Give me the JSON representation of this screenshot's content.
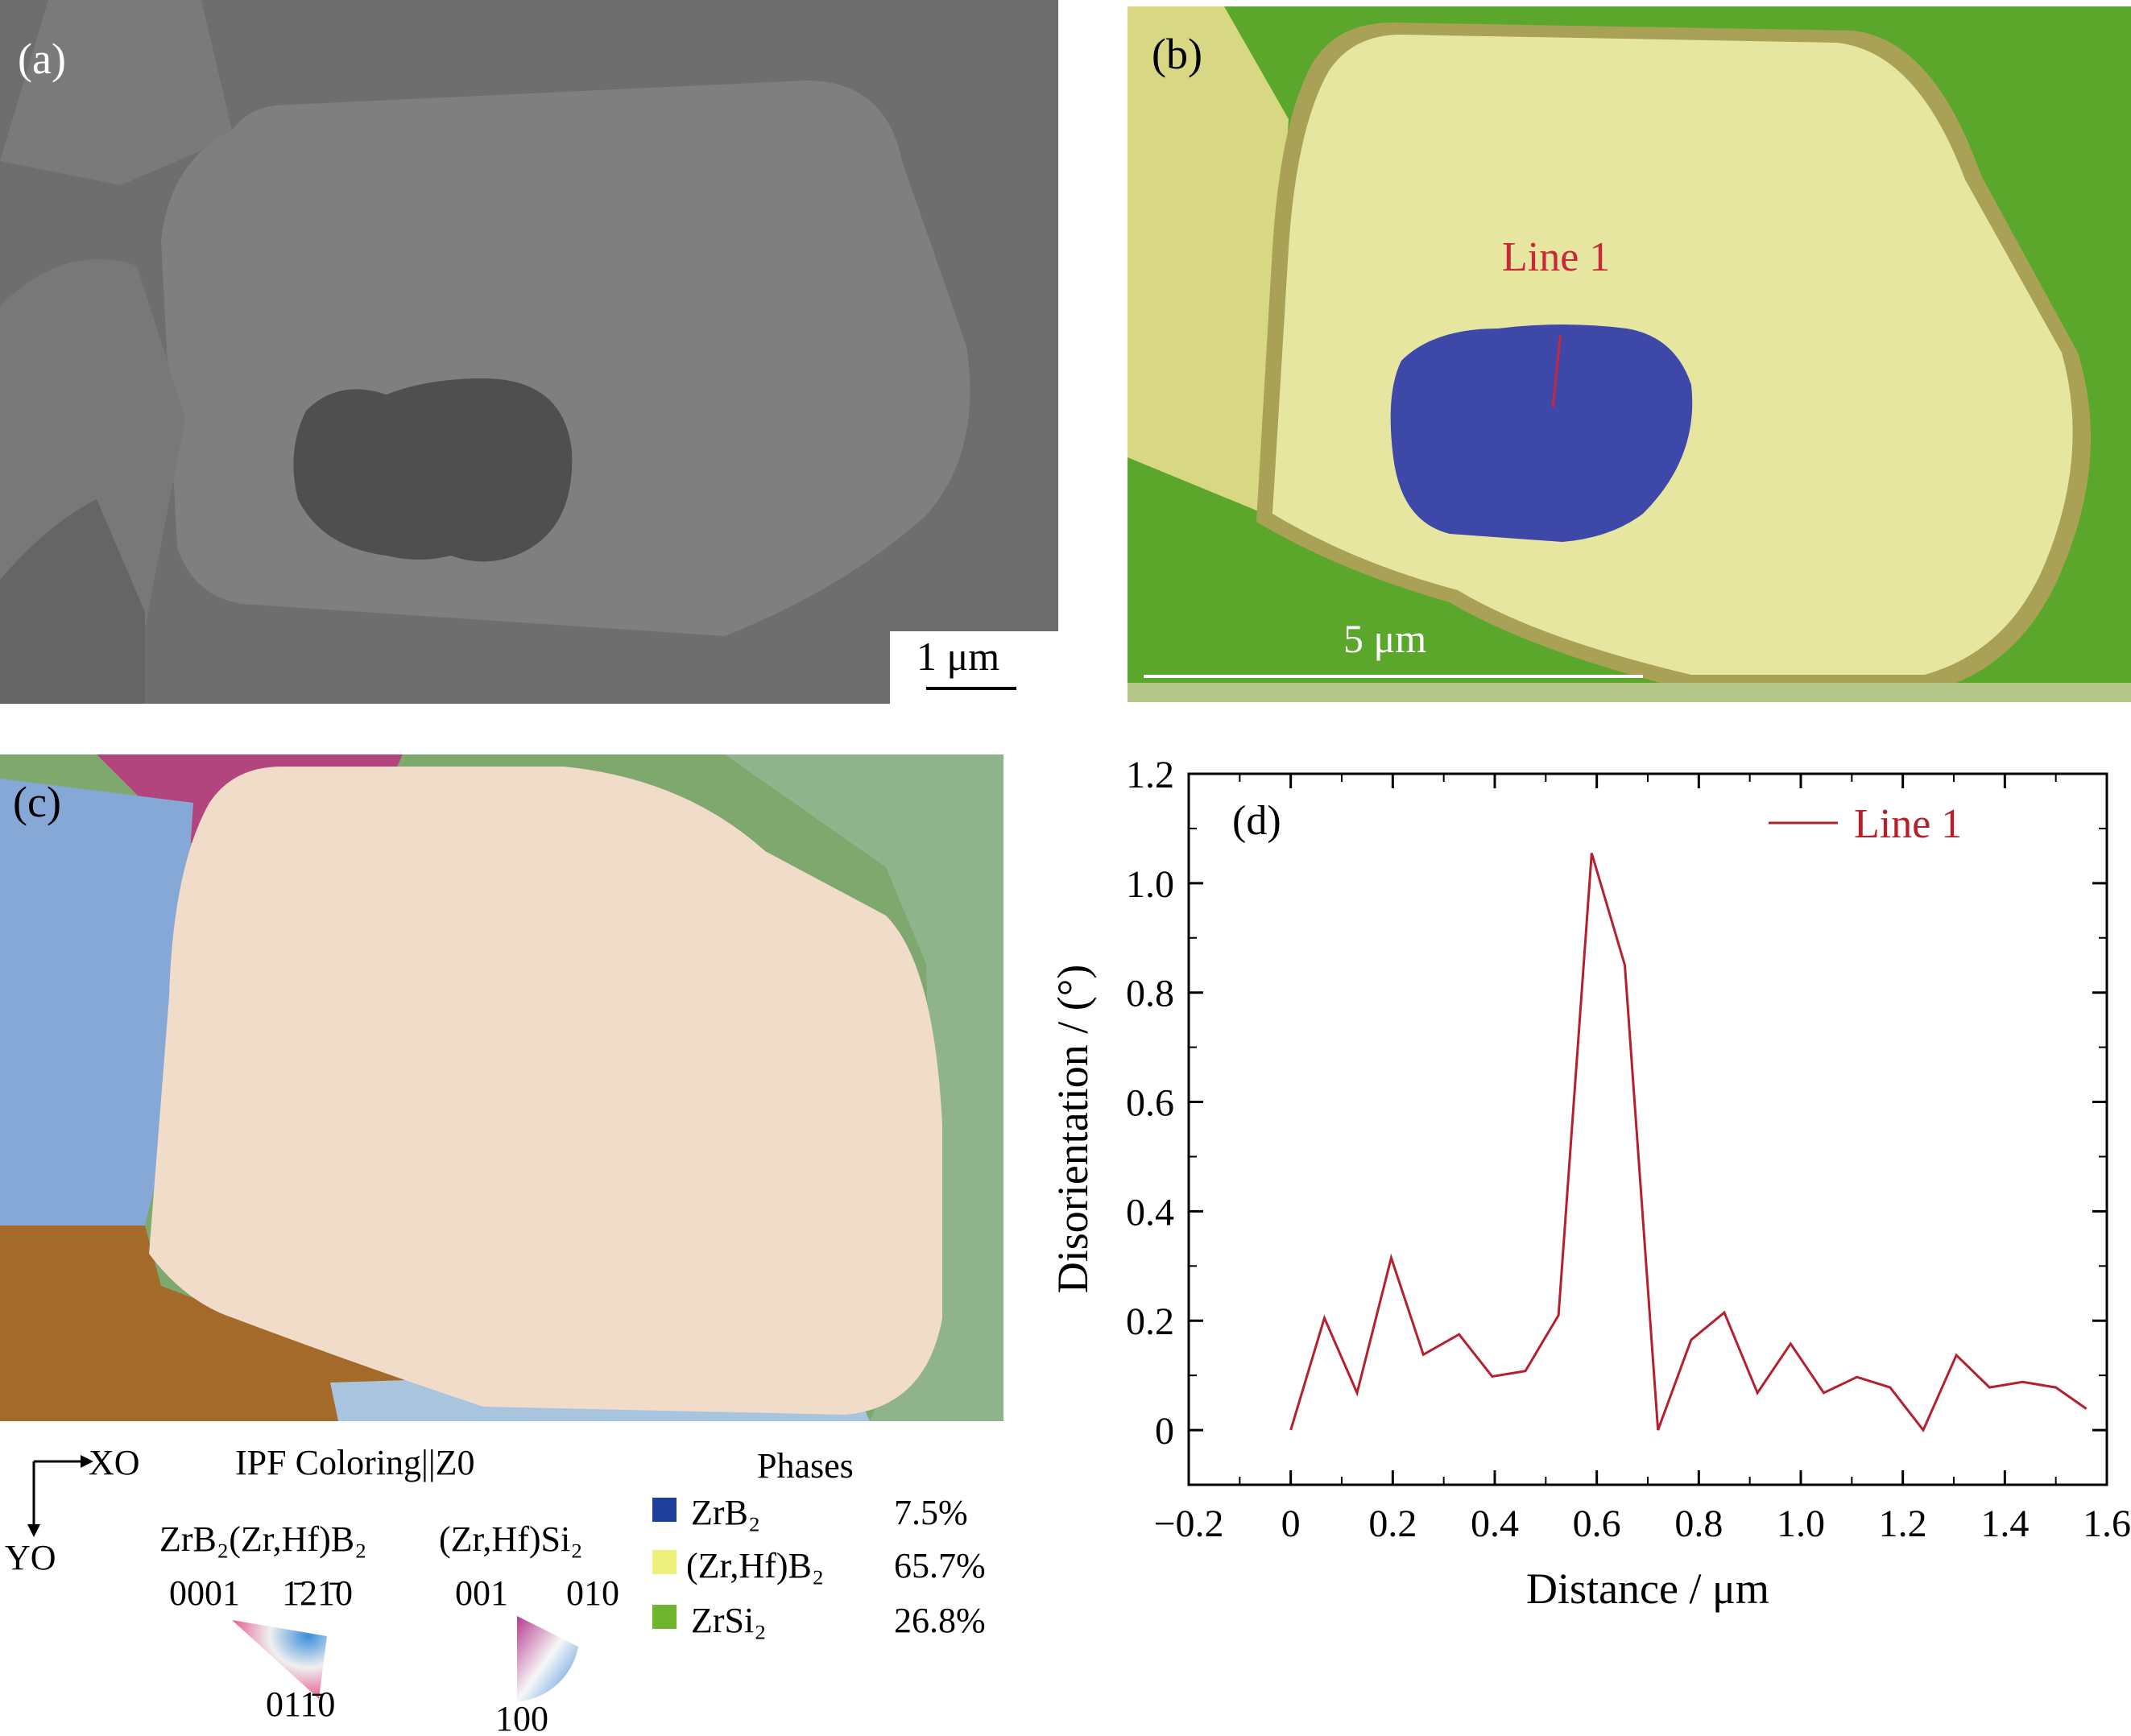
{
  "panel_a": {
    "label": "(a)",
    "scalebar": "1 μm"
  },
  "panel_b": {
    "label": "(b)",
    "line_label": "Line 1",
    "scalebar": "5 μm"
  },
  "panel_c": {
    "label": "(c)",
    "axes": {
      "x": "XO",
      "y": "YO"
    },
    "ipf_title": "IPF Coloring||Z0",
    "ipf_zrb2": {
      "title": "ZrB₂(Zr,Hf)B₂",
      "left": "0001",
      "right": "1̄21̄0",
      "bottom": "011̄0"
    },
    "ipf_zrsi2": {
      "title": "(Zr,Hf)Si₂",
      "left": "001",
      "right": "010",
      "bottom": "100"
    },
    "phases_title": "Phases",
    "phases": [
      {
        "name": "ZrB₂",
        "value": "7.5%",
        "color": "#1f3f9a"
      },
      {
        "name": "(Zr,Hf)B₂",
        "value": "65.7%",
        "color": "#eef07c"
      },
      {
        "name": "ZrSi₂",
        "value": "26.8%",
        "color": "#6fb52d"
      }
    ]
  },
  "chart_data": {
    "type": "line",
    "panel_label": "(d)",
    "xlabel": "Distance / μm",
    "ylabel": "Disorientation / (°)",
    "xlim": [
      -0.2,
      1.6
    ],
    "ylim": [
      -0.1,
      1.2
    ],
    "xticks": [
      "−0.2",
      "0",
      "0.2",
      "0.4",
      "0.6",
      "0.8",
      "1.0",
      "1.2",
      "1.4",
      "1.6"
    ],
    "yticks": [
      "0",
      "0.2",
      "0.4",
      "0.6",
      "0.8",
      "1.0",
      "1.2"
    ],
    "legend_position": "top-right",
    "series": [
      {
        "name": "Line 1",
        "color": "#b5202e",
        "x": [
          0,
          0.066,
          0.13,
          0.197,
          0.26,
          0.33,
          0.395,
          0.46,
          0.525,
          0.59,
          0.655,
          0.72,
          0.785,
          0.85,
          0.915,
          0.98,
          1.045,
          1.11,
          1.175,
          1.24,
          1.305,
          1.37,
          1.435,
          1.5,
          1.56
        ],
        "y": [
          0,
          0.205,
          0.068,
          0.315,
          0.138,
          0.175,
          0.098,
          0.108,
          0.21,
          1.055,
          0.85,
          0,
          0.165,
          0.215,
          0.068,
          0.158,
          0.068,
          0.097,
          0.078,
          0,
          0.137,
          0.078,
          0.088,
          0.078,
          0.039
        ]
      }
    ]
  }
}
